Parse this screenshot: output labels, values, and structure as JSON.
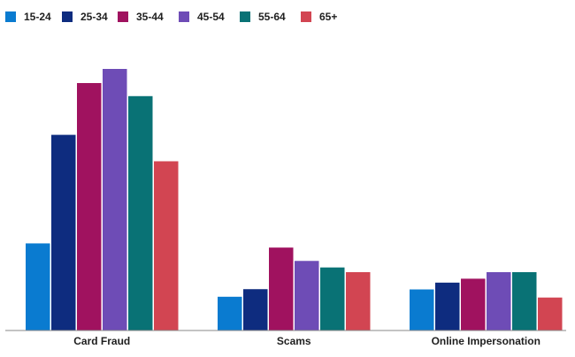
{
  "chart_data": {
    "type": "bar",
    "title": "",
    "xlabel": "",
    "ylabel": "",
    "ylim": [
      0,
      100
    ],
    "grid": false,
    "legend_position": "top-left",
    "categories": [
      "Card Fraud",
      "Scams",
      "Online Impersonation"
    ],
    "series": [
      {
        "name": "15-24",
        "color": "#0a7bd0",
        "values": [
          33.3,
          12.9,
          15.7
        ]
      },
      {
        "name": "25-34",
        "color": "#0e2c7f",
        "values": [
          74.8,
          15.8,
          18.3
        ]
      },
      {
        "name": "35-44",
        "color": "#a0125f",
        "values": [
          94.6,
          31.7,
          19.8
        ]
      },
      {
        "name": "45-54",
        "color": "#6e4cb6",
        "values": [
          100.0,
          26.6,
          22.3
        ]
      },
      {
        "name": "55-64",
        "color": "#097275",
        "values": [
          89.6,
          24.1,
          22.3
        ]
      },
      {
        "name": "65+",
        "color": "#d24552",
        "values": [
          64.7,
          22.3,
          12.6
        ]
      }
    ]
  }
}
